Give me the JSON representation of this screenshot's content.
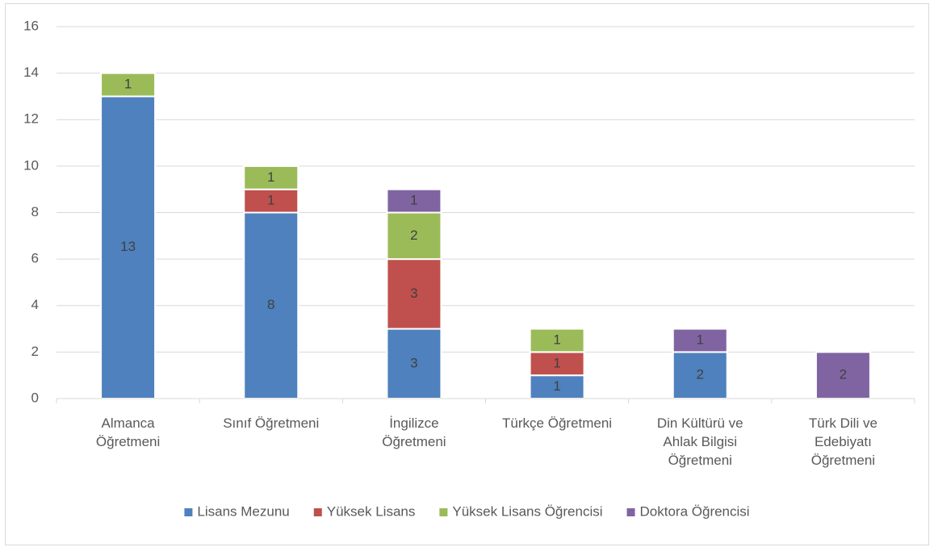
{
  "chart_data": {
    "type": "stacked_bar",
    "categories": [
      "Almanca Öğretmeni",
      "Sınıf Öğretmeni",
      "İngilizce Öğretmeni",
      "Türkçe Öğretmeni",
      "Din Kültürü ve Ahlak Bilgisi Öğretmeni",
      "Türk Dili ve Edebiyatı Öğretmeni"
    ],
    "series": [
      {
        "name": "Lisans Mezunu",
        "color": "#4e81bd",
        "values": [
          13,
          8,
          3,
          1,
          2,
          null
        ]
      },
      {
        "name": "Yüksek Lisans",
        "color": "#c0504d",
        "values": [
          null,
          1,
          3,
          1,
          null,
          null
        ]
      },
      {
        "name": "Yüksek Lisans Öğrencisi",
        "color": "#9bbb59",
        "values": [
          1,
          1,
          2,
          1,
          null,
          null
        ]
      },
      {
        "name": "Doktora Öğrencisi",
        "color": "#8064a2",
        "values": [
          null,
          null,
          1,
          null,
          1,
          2
        ]
      }
    ],
    "ylim": [
      0,
      16
    ],
    "yticks": [
      0,
      2,
      4,
      6,
      8,
      10,
      12,
      14,
      16
    ],
    "grid": true,
    "legend": "bottom"
  }
}
